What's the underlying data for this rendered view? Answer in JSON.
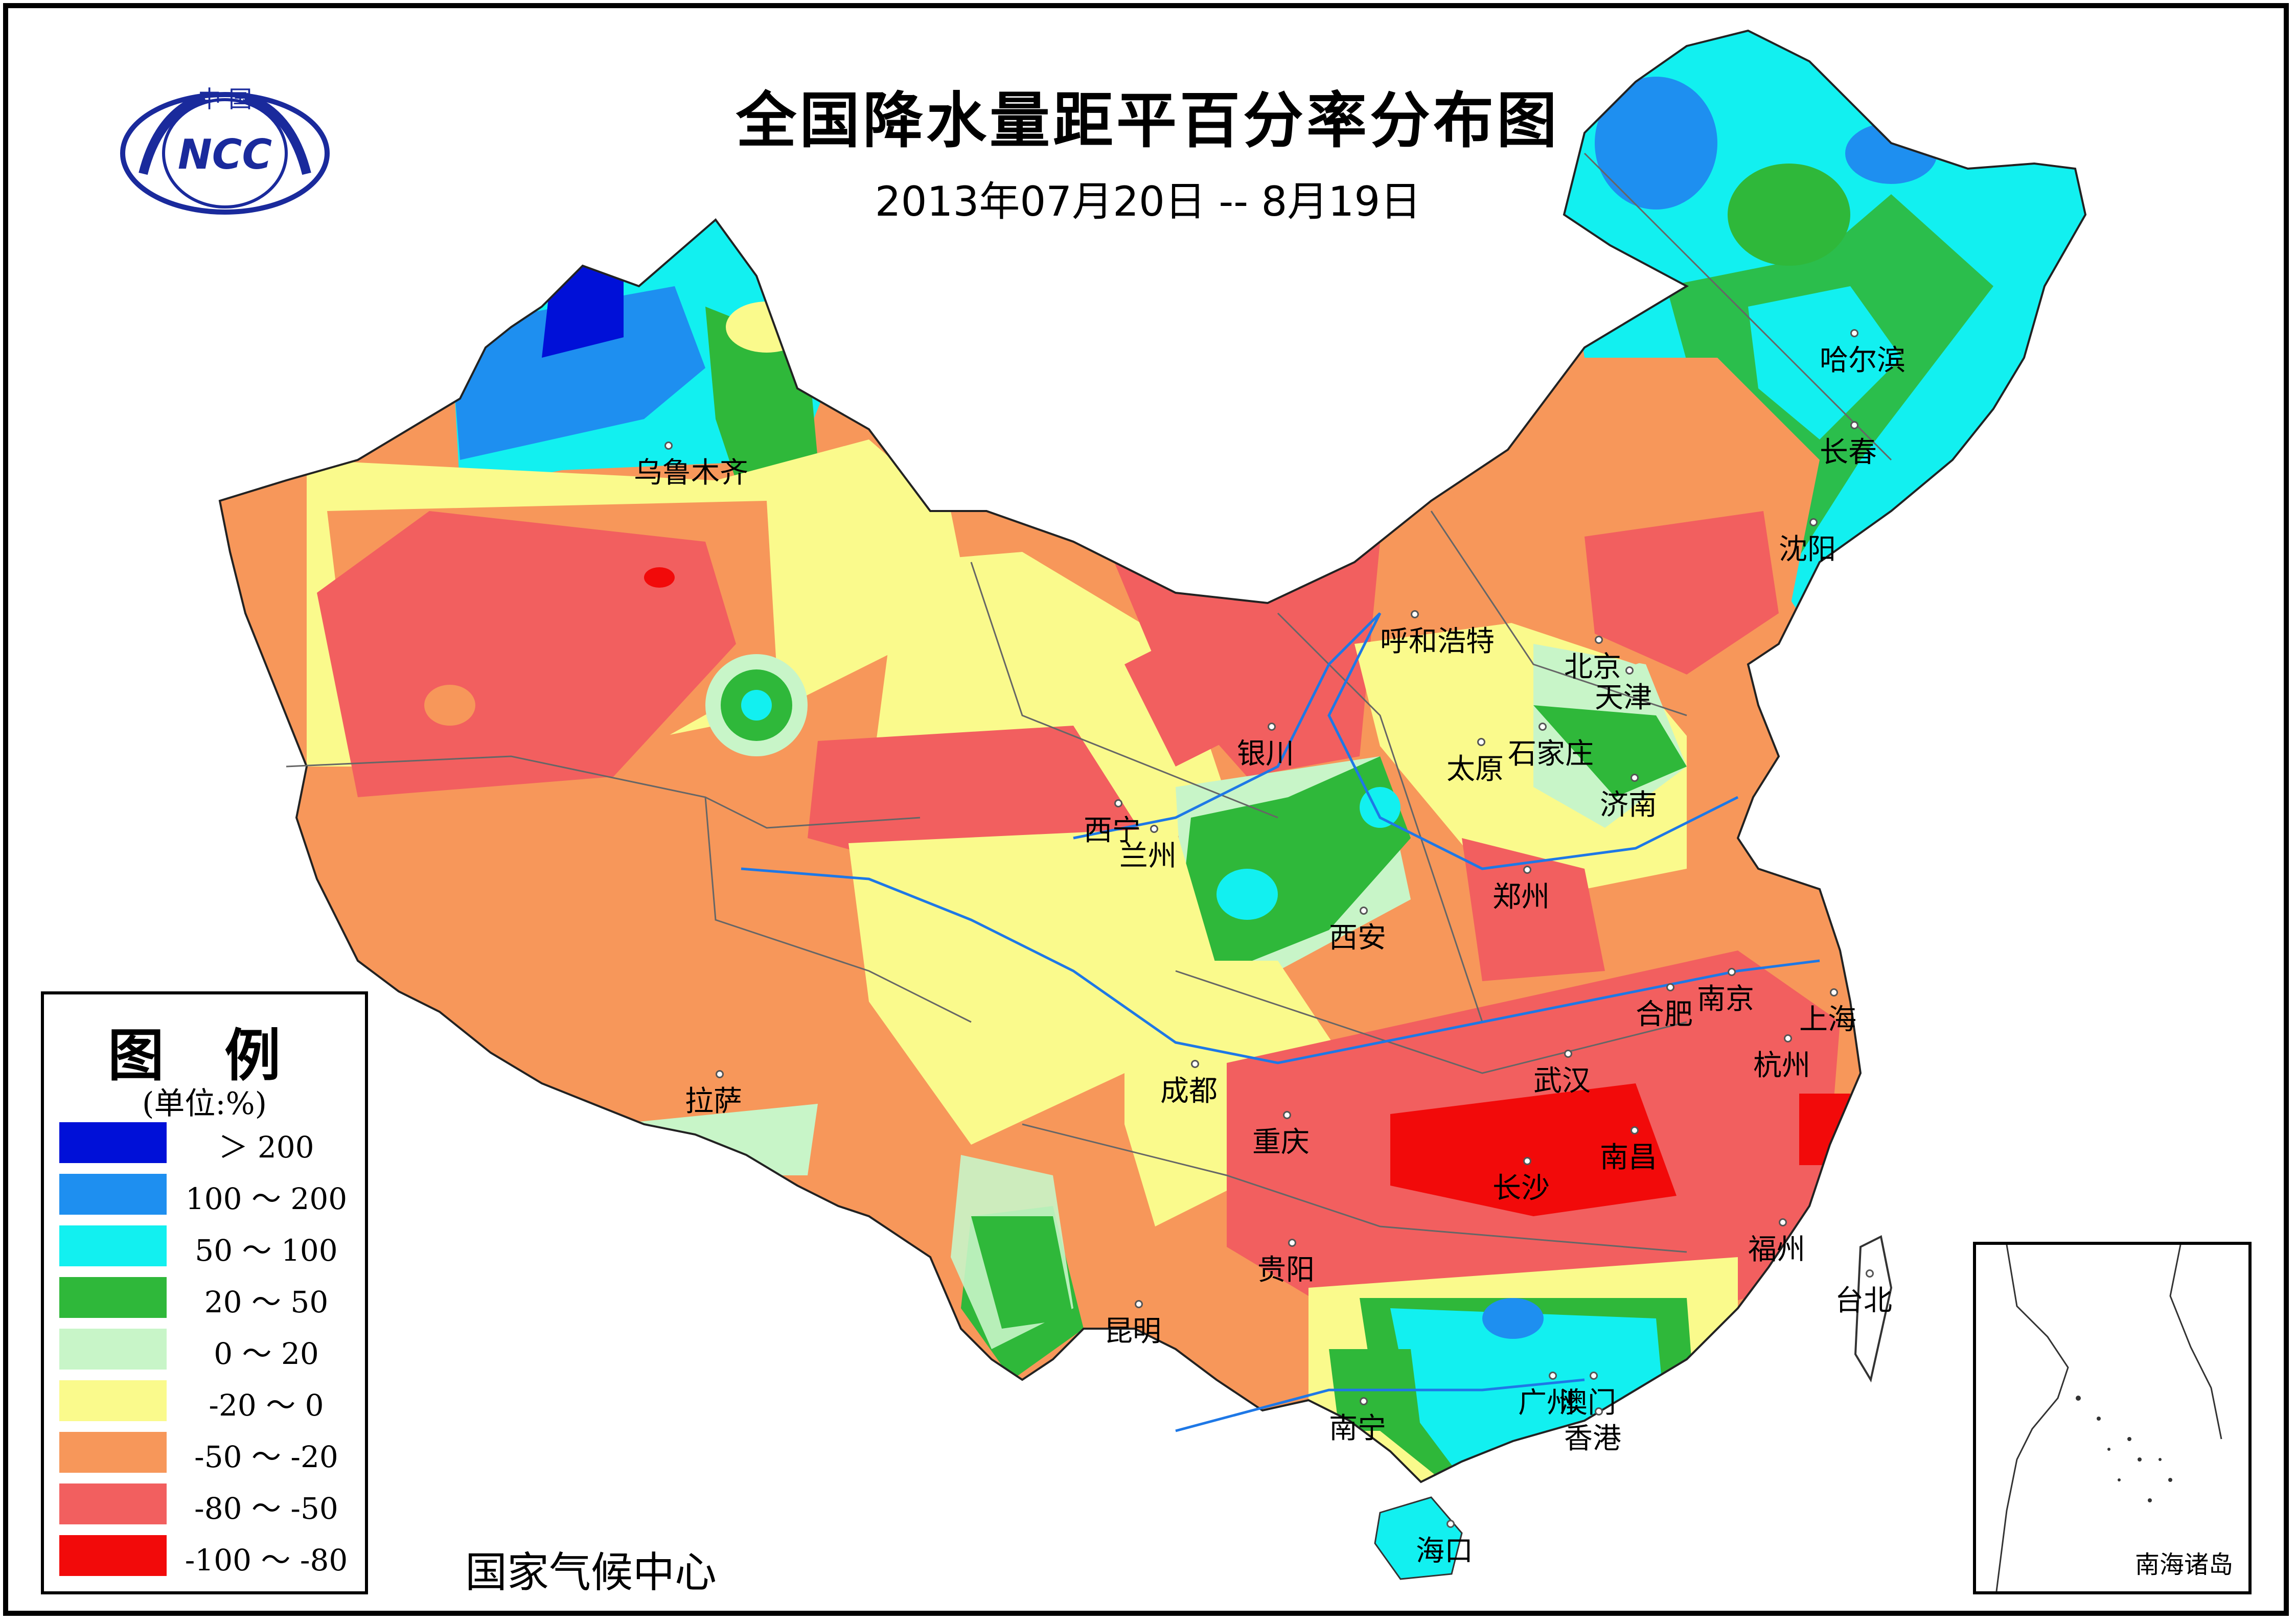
{
  "title": "全国降水量距平百分率分布图",
  "subtitle": "2013年07月20日 -- 8月19日",
  "logo": {
    "top_text": "中 国",
    "center_text": "NCC"
  },
  "legend": {
    "title": "图 例",
    "unit": "(单位:%)",
    "items": [
      {
        "label": "＞ 200",
        "color": "#0010d8"
      },
      {
        "label": "100 ～ 200",
        "color": "#1e8ff0"
      },
      {
        "label": "50 ～ 100",
        "color": "#12f0f0"
      },
      {
        "label": "20 ～ 50",
        "color": "#2fb83a"
      },
      {
        "label": "0 ～ 20",
        "color": "#c8f5c8"
      },
      {
        "label": "-20 ～ 0",
        "color": "#fafa8c"
      },
      {
        "label": "-50 ～ -20",
        "color": "#f7975a"
      },
      {
        "label": "-80 ～ -50",
        "color": "#f25f5f"
      },
      {
        "label": "-100 ～ -80",
        "color": "#f20a0a"
      }
    ]
  },
  "source": "国家气候中心",
  "inset_label": "南海诸岛",
  "cities": [
    {
      "name": "乌鲁木齐"
    },
    {
      "name": "哈尔滨"
    },
    {
      "name": "长春"
    },
    {
      "name": "沈阳"
    },
    {
      "name": "呼和浩特"
    },
    {
      "name": "北京"
    },
    {
      "name": "天津"
    },
    {
      "name": "银川"
    },
    {
      "name": "太原"
    },
    {
      "name": "石家庄"
    },
    {
      "name": "济南"
    },
    {
      "name": "西宁"
    },
    {
      "name": "兰州"
    },
    {
      "name": "郑州"
    },
    {
      "name": "西安"
    },
    {
      "name": "南京"
    },
    {
      "name": "合肥"
    },
    {
      "name": "上海"
    },
    {
      "name": "拉萨"
    },
    {
      "name": "成都"
    },
    {
      "name": "武汉"
    },
    {
      "name": "杭州"
    },
    {
      "name": "重庆"
    },
    {
      "name": "长沙"
    },
    {
      "name": "南昌"
    },
    {
      "name": "福州"
    },
    {
      "name": "贵阳"
    },
    {
      "name": "台北"
    },
    {
      "name": "昆明"
    },
    {
      "name": "广州"
    },
    {
      "name": "澳门"
    },
    {
      "name": "香港"
    },
    {
      "name": "南宁"
    },
    {
      "name": "海口"
    }
  ]
}
